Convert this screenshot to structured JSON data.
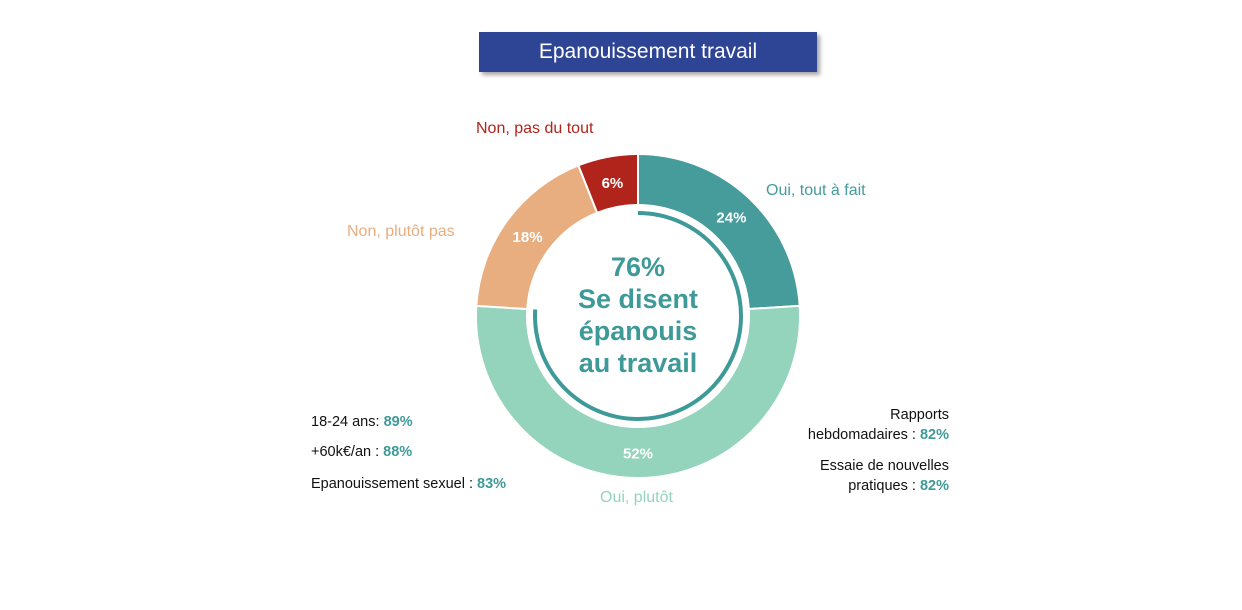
{
  "title": "Epanouissement travail",
  "chart_data": {
    "type": "pie",
    "variant": "donut",
    "categories": [
      "Oui, tout à fait",
      "Oui, plutôt",
      "Non, plutôt pas",
      "Non, pas du tout"
    ],
    "values": [
      24,
      52,
      18,
      6
    ],
    "data_labels": [
      "24%",
      "52%",
      "18%",
      "6%"
    ],
    "colors": [
      "#459C9B",
      "#94D3BC",
      "#E8AE80",
      "#B0241B"
    ],
    "center": {
      "value": "76%",
      "line1": "Se disent",
      "line2": "épanouis",
      "line3": "au travail"
    },
    "center_arc_percent": 76,
    "center_color": "#3E9A98"
  },
  "notes_left": [
    {
      "label": "18-24 ans: ",
      "value": "89%"
    },
    {
      "label": "+60k€/an : ",
      "value": "88%"
    },
    {
      "label": "Epanouissement sexuel : ",
      "value": "83%"
    }
  ],
  "notes_right": [
    {
      "line1": "Rapports",
      "label": "hebdomadaires : ",
      "value": "82%"
    },
    {
      "line1": "Essaie de nouvelles",
      "label": "pratiques : ",
      "value": "82%"
    }
  ]
}
